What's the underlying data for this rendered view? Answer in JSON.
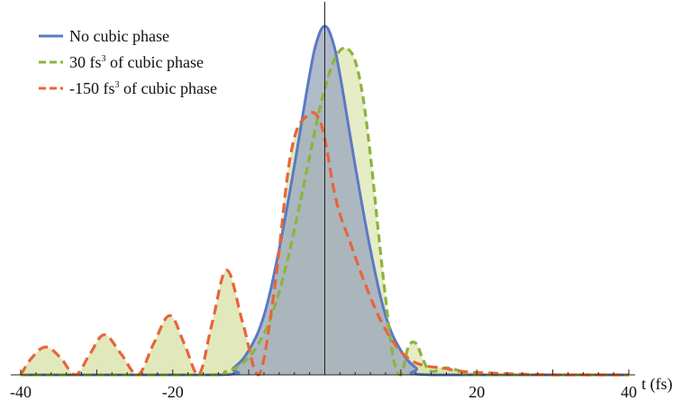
{
  "chart_data": {
    "type": "area",
    "xlabel": "t (fs)",
    "ylabel": "",
    "xlim": [
      -40,
      40
    ],
    "ylim": [
      0,
      1
    ],
    "xticks": [
      -40,
      -20,
      20,
      40
    ],
    "grid": false,
    "legend_position": "top-left",
    "colors": {
      "no_cubic_line": "#5b79c4",
      "no_cubic_fill": "#aeb3ef",
      "pos_cubic_line": "#8db43a",
      "pos_cubic_fill": "#d4e0a0",
      "neg_cubic_line": "#e8643a",
      "neg_cubic_fill": "#d4e0a0",
      "overlap_fill": "#8ea67c"
    },
    "legend": [
      {
        "key": "no_cubic",
        "text": "No cubic phase",
        "style": "solid"
      },
      {
        "key": "pos_cubic",
        "text_pre": "30 fs",
        "sup": "3",
        "text_post": " of cubic phase",
        "style": "dashed"
      },
      {
        "key": "neg_cubic",
        "text_pre": "-150 fs",
        "sup": "3",
        "text_post": " of cubic phase",
        "style": "dashed"
      }
    ],
    "series": [
      {
        "key": "no_cubic",
        "name": "No cubic phase",
        "x": [
          -40,
          -14,
          -12,
          -10,
          -8,
          -6,
          -4,
          -2,
          -1,
          0,
          1,
          2,
          4,
          6,
          8,
          10,
          12,
          14,
          40
        ],
        "y": [
          0,
          0,
          0.02,
          0.07,
          0.17,
          0.36,
          0.6,
          0.86,
          0.96,
          1.0,
          0.96,
          0.86,
          0.6,
          0.36,
          0.17,
          0.07,
          0.02,
          0,
          0
        ]
      },
      {
        "key": "pos_cubic",
        "name": "30 fs3 of cubic phase",
        "x": [
          -40,
          -16,
          -13,
          -11,
          -9,
          -7,
          -5,
          -3,
          -1,
          0,
          1,
          2,
          3,
          4,
          5,
          6,
          7,
          8,
          9,
          10,
          11,
          12,
          13,
          14,
          16,
          18,
          20,
          40
        ],
        "y": [
          0,
          0,
          0.01,
          0.03,
          0.08,
          0.17,
          0.32,
          0.52,
          0.73,
          0.82,
          0.89,
          0.93,
          0.935,
          0.9,
          0.8,
          0.63,
          0.42,
          0.22,
          0.05,
          0.0,
          0.08,
          0.09,
          0.04,
          0.01,
          0.02,
          0.01,
          0,
          0
        ]
      },
      {
        "key": "neg_cubic",
        "name": "-150 fs3 of cubic phase",
        "x": [
          -40,
          -38.5,
          -36.7,
          -34.8,
          -32.8,
          -30.9,
          -29,
          -26.8,
          -24.6,
          -22.5,
          -20.4,
          -18.5,
          -16.6,
          -14.8,
          -12.9,
          -10.8,
          -8.7,
          -6.6,
          -4.5,
          -2.5,
          -0.5,
          1.5,
          3.5,
          5.5,
          7.5,
          9.5,
          11.5,
          13.5,
          15.5,
          18,
          22,
          30,
          40
        ],
        "y": [
          0,
          0.05,
          0.08,
          0.05,
          0,
          0.06,
          0.115,
          0.06,
          0,
          0.09,
          0.17,
          0.09,
          0,
          0.15,
          0.3,
          0.15,
          0,
          0.25,
          0.63,
          0.74,
          0.72,
          0.5,
          0.37,
          0.25,
          0.15,
          0.08,
          0.04,
          0.025,
          0.02,
          0.01,
          0.005,
          0,
          0
        ]
      }
    ]
  }
}
